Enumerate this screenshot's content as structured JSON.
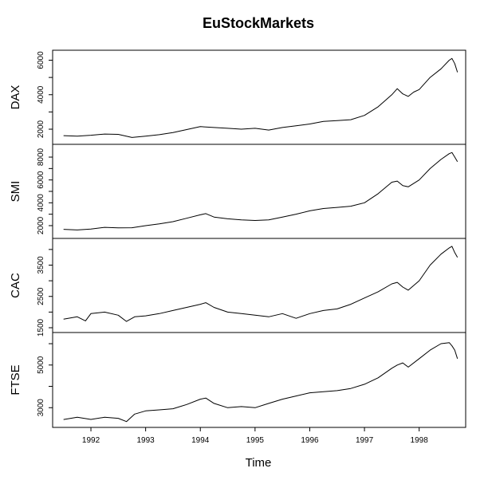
{
  "chart_data": {
    "type": "line",
    "title": "EuStockMarkets",
    "xlabel": "Time",
    "xlim": [
      1991.3,
      1998.85
    ],
    "x_ticks": [
      1992,
      1993,
      1994,
      1995,
      1996,
      1997,
      1998
    ],
    "panels": [
      {
        "name": "DAX",
        "ylim": [
          1400,
          6300
        ],
        "ticks_labeled": [
          2000,
          4000,
          6000
        ],
        "ticks_minor": [
          3000,
          5000
        ],
        "series": [
          {
            "x": 1991.5,
            "y": 1628
          },
          {
            "x": 1991.75,
            "y": 1600
          },
          {
            "x": 1992.0,
            "y": 1650
          },
          {
            "x": 1992.25,
            "y": 1720
          },
          {
            "x": 1992.5,
            "y": 1700
          },
          {
            "x": 1992.75,
            "y": 1520
          },
          {
            "x": 1993.0,
            "y": 1600
          },
          {
            "x": 1993.25,
            "y": 1680
          },
          {
            "x": 1993.5,
            "y": 1800
          },
          {
            "x": 1993.75,
            "y": 1980
          },
          {
            "x": 1994.0,
            "y": 2150
          },
          {
            "x": 1994.25,
            "y": 2100
          },
          {
            "x": 1994.5,
            "y": 2050
          },
          {
            "x": 1994.75,
            "y": 2000
          },
          {
            "x": 1995.0,
            "y": 2050
          },
          {
            "x": 1995.25,
            "y": 1950
          },
          {
            "x": 1995.5,
            "y": 2100
          },
          {
            "x": 1995.75,
            "y": 2200
          },
          {
            "x": 1996.0,
            "y": 2300
          },
          {
            "x": 1996.25,
            "y": 2450
          },
          {
            "x": 1996.5,
            "y": 2500
          },
          {
            "x": 1996.75,
            "y": 2550
          },
          {
            "x": 1997.0,
            "y": 2800
          },
          {
            "x": 1997.25,
            "y": 3300
          },
          {
            "x": 1997.5,
            "y": 4000
          },
          {
            "x": 1997.6,
            "y": 4350
          },
          {
            "x": 1997.7,
            "y": 4050
          },
          {
            "x": 1997.8,
            "y": 3900
          },
          {
            "x": 1997.9,
            "y": 4150
          },
          {
            "x": 1998.0,
            "y": 4300
          },
          {
            "x": 1998.2,
            "y": 5000
          },
          {
            "x": 1998.4,
            "y": 5500
          },
          {
            "x": 1998.55,
            "y": 6000
          },
          {
            "x": 1998.6,
            "y": 6100
          },
          {
            "x": 1998.65,
            "y": 5800
          },
          {
            "x": 1998.7,
            "y": 5300
          }
        ]
      },
      {
        "name": "SMI",
        "ylim": [
          1300,
          8700
        ],
        "ticks_labeled": [
          2000,
          4000,
          6000,
          8000
        ],
        "ticks_minor": [
          3000,
          5000,
          7000
        ],
        "series": [
          {
            "x": 1991.5,
            "y": 1678
          },
          {
            "x": 1991.75,
            "y": 1620
          },
          {
            "x": 1992.0,
            "y": 1700
          },
          {
            "x": 1992.25,
            "y": 1850
          },
          {
            "x": 1992.5,
            "y": 1800
          },
          {
            "x": 1992.75,
            "y": 1820
          },
          {
            "x": 1993.0,
            "y": 2000
          },
          {
            "x": 1993.25,
            "y": 2150
          },
          {
            "x": 1993.5,
            "y": 2350
          },
          {
            "x": 1993.75,
            "y": 2650
          },
          {
            "x": 1994.0,
            "y": 2950
          },
          {
            "x": 1994.1,
            "y": 3050
          },
          {
            "x": 1994.25,
            "y": 2750
          },
          {
            "x": 1994.5,
            "y": 2600
          },
          {
            "x": 1994.75,
            "y": 2500
          },
          {
            "x": 1995.0,
            "y": 2450
          },
          {
            "x": 1995.25,
            "y": 2500
          },
          {
            "x": 1995.5,
            "y": 2750
          },
          {
            "x": 1995.75,
            "y": 3000
          },
          {
            "x": 1996.0,
            "y": 3300
          },
          {
            "x": 1996.25,
            "y": 3500
          },
          {
            "x": 1996.5,
            "y": 3600
          },
          {
            "x": 1996.75,
            "y": 3700
          },
          {
            "x": 1997.0,
            "y": 4000
          },
          {
            "x": 1997.25,
            "y": 4800
          },
          {
            "x": 1997.5,
            "y": 5800
          },
          {
            "x": 1997.6,
            "y": 5900
          },
          {
            "x": 1997.7,
            "y": 5500
          },
          {
            "x": 1997.8,
            "y": 5400
          },
          {
            "x": 1998.0,
            "y": 6000
          },
          {
            "x": 1998.2,
            "y": 7000
          },
          {
            "x": 1998.4,
            "y": 7800
          },
          {
            "x": 1998.55,
            "y": 8300
          },
          {
            "x": 1998.6,
            "y": 8400
          },
          {
            "x": 1998.65,
            "y": 8000
          },
          {
            "x": 1998.7,
            "y": 7600
          }
        ]
      },
      {
        "name": "CAC",
        "ylim": [
          1500,
          4200
        ],
        "ticks_labeled": [
          1500,
          2500,
          3500
        ],
        "ticks_minor": [
          2000,
          3000,
          4000
        ],
        "series": [
          {
            "x": 1991.5,
            "y": 1773
          },
          {
            "x": 1991.75,
            "y": 1850
          },
          {
            "x": 1991.9,
            "y": 1720
          },
          {
            "x": 1992.0,
            "y": 1950
          },
          {
            "x": 1992.25,
            "y": 2000
          },
          {
            "x": 1992.5,
            "y": 1900
          },
          {
            "x": 1992.65,
            "y": 1700
          },
          {
            "x": 1992.8,
            "y": 1850
          },
          {
            "x": 1993.0,
            "y": 1880
          },
          {
            "x": 1993.25,
            "y": 1950
          },
          {
            "x": 1993.5,
            "y": 2050
          },
          {
            "x": 1993.75,
            "y": 2150
          },
          {
            "x": 1994.0,
            "y": 2250
          },
          {
            "x": 1994.1,
            "y": 2300
          },
          {
            "x": 1994.25,
            "y": 2150
          },
          {
            "x": 1994.5,
            "y": 2000
          },
          {
            "x": 1994.75,
            "y": 1950
          },
          {
            "x": 1995.0,
            "y": 1900
          },
          {
            "x": 1995.25,
            "y": 1850
          },
          {
            "x": 1995.5,
            "y": 1950
          },
          {
            "x": 1995.75,
            "y": 1800
          },
          {
            "x": 1996.0,
            "y": 1950
          },
          {
            "x": 1996.25,
            "y": 2050
          },
          {
            "x": 1996.5,
            "y": 2100
          },
          {
            "x": 1996.75,
            "y": 2250
          },
          {
            "x": 1997.0,
            "y": 2450
          },
          {
            "x": 1997.25,
            "y": 2650
          },
          {
            "x": 1997.5,
            "y": 2900
          },
          {
            "x": 1997.6,
            "y": 2950
          },
          {
            "x": 1997.7,
            "y": 2800
          },
          {
            "x": 1997.8,
            "y": 2700
          },
          {
            "x": 1998.0,
            "y": 3000
          },
          {
            "x": 1998.2,
            "y": 3500
          },
          {
            "x": 1998.4,
            "y": 3850
          },
          {
            "x": 1998.55,
            "y": 4050
          },
          {
            "x": 1998.6,
            "y": 4100
          },
          {
            "x": 1998.65,
            "y": 3900
          },
          {
            "x": 1998.7,
            "y": 3750
          }
        ]
      },
      {
        "name": "FTSE",
        "ylim": [
          2300,
          6300
        ],
        "ticks_labeled": [
          3000,
          5000
        ],
        "ticks_minor": [
          4000,
          6000
        ],
        "series": [
          {
            "x": 1991.5,
            "y": 2444
          },
          {
            "x": 1991.75,
            "y": 2550
          },
          {
            "x": 1992.0,
            "y": 2450
          },
          {
            "x": 1992.25,
            "y": 2550
          },
          {
            "x": 1992.5,
            "y": 2500
          },
          {
            "x": 1992.65,
            "y": 2350
          },
          {
            "x": 1992.8,
            "y": 2700
          },
          {
            "x": 1993.0,
            "y": 2850
          },
          {
            "x": 1993.25,
            "y": 2900
          },
          {
            "x": 1993.5,
            "y": 2950
          },
          {
            "x": 1993.75,
            "y": 3150
          },
          {
            "x": 1994.0,
            "y": 3400
          },
          {
            "x": 1994.1,
            "y": 3450
          },
          {
            "x": 1994.25,
            "y": 3200
          },
          {
            "x": 1994.5,
            "y": 3000
          },
          {
            "x": 1994.75,
            "y": 3050
          },
          {
            "x": 1995.0,
            "y": 3000
          },
          {
            "x": 1995.25,
            "y": 3200
          },
          {
            "x": 1995.5,
            "y": 3400
          },
          {
            "x": 1995.75,
            "y": 3550
          },
          {
            "x": 1996.0,
            "y": 3700
          },
          {
            "x": 1996.25,
            "y": 3750
          },
          {
            "x": 1996.5,
            "y": 3800
          },
          {
            "x": 1996.75,
            "y": 3900
          },
          {
            "x": 1997.0,
            "y": 4100
          },
          {
            "x": 1997.25,
            "y": 4400
          },
          {
            "x": 1997.5,
            "y": 4850
          },
          {
            "x": 1997.6,
            "y": 5000
          },
          {
            "x": 1997.7,
            "y": 5100
          },
          {
            "x": 1997.8,
            "y": 4900
          },
          {
            "x": 1998.0,
            "y": 5300
          },
          {
            "x": 1998.2,
            "y": 5700
          },
          {
            "x": 1998.4,
            "y": 6000
          },
          {
            "x": 1998.55,
            "y": 6050
          },
          {
            "x": 1998.6,
            "y": 5900
          },
          {
            "x": 1998.65,
            "y": 5700
          },
          {
            "x": 1998.7,
            "y": 5300
          }
        ]
      }
    ]
  }
}
